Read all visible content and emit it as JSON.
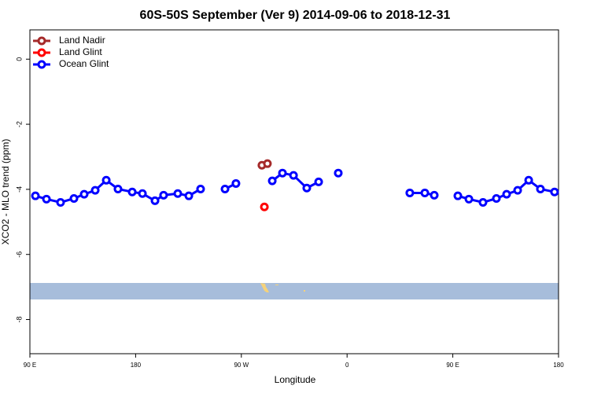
{
  "chart_data": {
    "type": "line",
    "title": "60S-50S September (Ver 9)   2014-09-06 to 2018-12-31",
    "xlabel": "Longitude",
    "ylabel": "XCO2 - MLO trend (ppm)",
    "xlim": [
      90,
      540
    ],
    "xticks": [
      {
        "value": 90,
        "label": "90 E"
      },
      180,
      {
        "value": 270,
        "label": "90 W"
      },
      {
        "value": 360,
        "label": "0"
      },
      {
        "value": 450,
        "label": "90 E"
      },
      {
        "value": 540,
        "label": "180"
      }
    ],
    "ylim": [
      -9.05,
      0.9
    ],
    "yticks": [
      0,
      -2,
      -4,
      -6,
      -8
    ],
    "legend": "top-left",
    "series": [
      {
        "name": "Land Nadir",
        "color": "#a52a2a",
        "x": [
          287.5,
          292.2
        ],
        "values": [
          -3.26,
          -3.21
        ]
      },
      {
        "name": "Land Glint",
        "color": "#ff0000",
        "x": [
          289.6
        ],
        "values": [
          -4.54
        ]
      },
      {
        "name": "Ocean Glint",
        "color": "#0000ff",
        "x": [
          94.7,
          104.1,
          116.1,
          127.5,
          136.2,
          145.6,
          155.0,
          165.0,
          177.1,
          185.8,
          196.5,
          203.8,
          215.9,
          225.3,
          235.3,
          null,
          256.1,
          265.4,
          null,
          296.3,
          305.0,
          314.4,
          325.7,
          335.8,
          null,
          352.5,
          null,
          413.4,
          426.2,
          434.2,
          null,
          454.3,
          463.7,
          475.7,
          487.1,
          495.8,
          505.2,
          514.6,
          524.6,
          536.6
        ],
        "values": [
          -4.2,
          -4.3,
          -4.4,
          -4.28,
          -4.15,
          -4.03,
          -3.72,
          -3.99,
          -4.08,
          -4.13,
          -4.35,
          -4.18,
          -4.13,
          -4.2,
          -3.99,
          null,
          -3.99,
          -3.82,
          null,
          -3.74,
          -3.5,
          -3.57,
          -3.96,
          -3.77,
          null,
          -3.5,
          null,
          -4.11,
          -4.11,
          -4.18,
          null,
          -4.2,
          -4.3,
          -4.4,
          -4.28,
          -4.15,
          -4.03,
          -3.72,
          -3.99,
          -4.08
        ]
      }
    ]
  }
}
